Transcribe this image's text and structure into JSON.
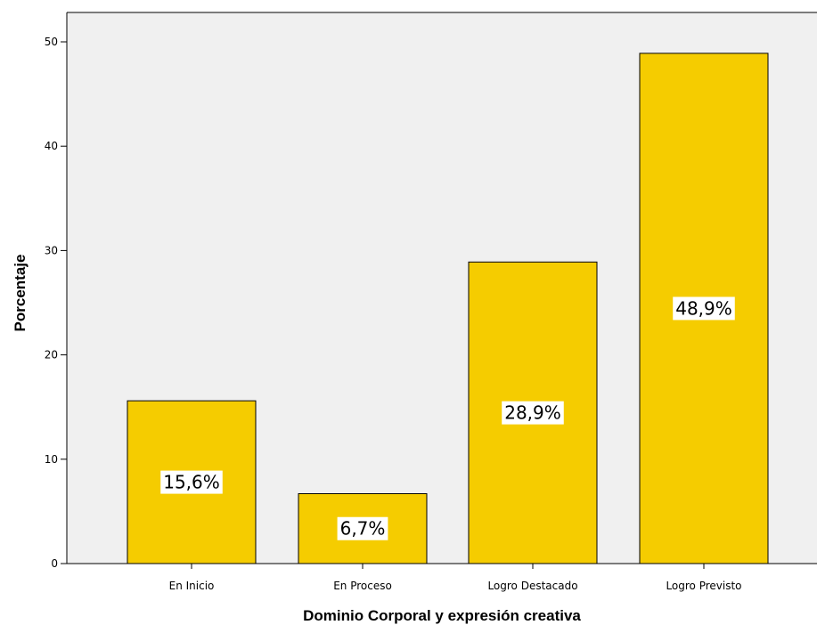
{
  "chart_data": {
    "type": "bar",
    "title": "",
    "xlabel": "Dominio Corporal y expresión creativa",
    "ylabel": "Porcentaje",
    "categories": [
      "En Inicio",
      "En Proceso",
      "Logro Destacado",
      "Logro Previsto"
    ],
    "values": [
      15.6,
      6.7,
      28.9,
      48.9
    ],
    "value_labels": [
      "15,6%",
      "6,7%",
      "28,9%",
      "48,9%"
    ],
    "ylim": [
      0,
      50
    ],
    "yticks": [
      0,
      10,
      20,
      30,
      40,
      50
    ],
    "grid": false,
    "colors": {
      "bar_fill": "#F5CC00",
      "bar_stroke": "#000000",
      "plot_background": "#F0F0F0",
      "page_background": "#FFFFFF"
    }
  }
}
